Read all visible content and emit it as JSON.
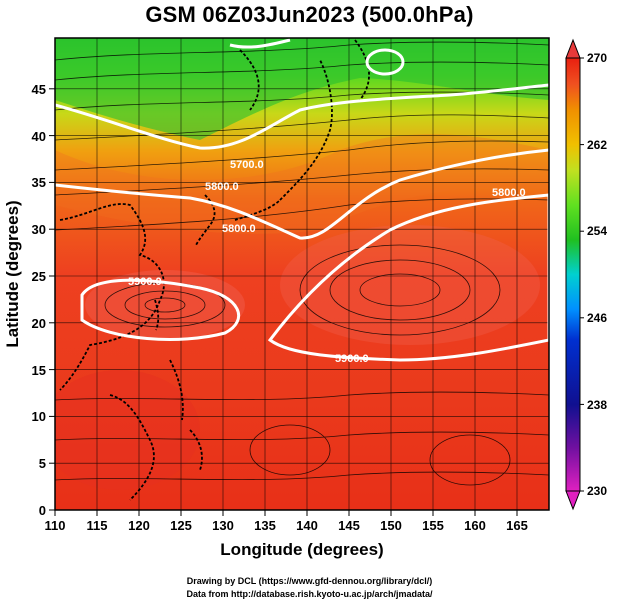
{
  "title": "GSM 06Z03Jun2023 (500.0hPa)",
  "x_axis": {
    "label": "Longitude (degrees)",
    "ticks": [
      "110",
      "115",
      "120",
      "125",
      "130",
      "135",
      "140",
      "145",
      "150",
      "155",
      "160",
      "165"
    ]
  },
  "y_axis": {
    "label": "Latitude  (degrees)",
    "ticks": [
      "0",
      "5",
      "10",
      "15",
      "20",
      "25",
      "30",
      "35",
      "40",
      "45"
    ]
  },
  "colorbar": {
    "ticks": [
      "230",
      "238",
      "246",
      "254",
      "262",
      "270"
    ],
    "stops": [
      "#e020c0",
      "#7010a0",
      "#101090",
      "#0030d0",
      "#0090ff",
      "#00d0d0",
      "#20c020",
      "#60e020",
      "#c0e020",
      "#f0c000",
      "#f09000",
      "#f05020",
      "#e82010"
    ]
  },
  "contour_labels": [
    "5900.0",
    "5900.0",
    "5800.0",
    "5700.0",
    "5800.0",
    "5800.0"
  ],
  "footer": {
    "line1": "Drawing by DCL (https://www.gfd-dennou.org/library/dcl/)",
    "line2": "Data from http://database.rish.kyoto-u.ac.jp/arch/jmadata/"
  }
}
